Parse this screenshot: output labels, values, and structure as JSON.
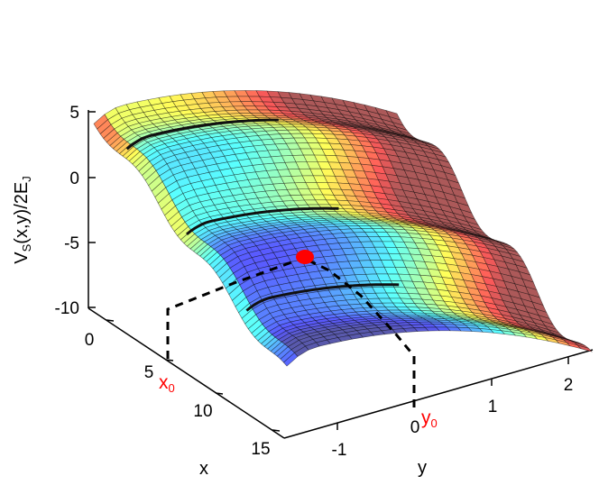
{
  "chart_data": {
    "type": "surface",
    "title": "",
    "zlabel": {
      "main": "V",
      "sub": "S",
      "mid": "(x,y)/2E",
      "sub2": "J"
    },
    "xlabel": "x",
    "ylabel": "y",
    "x_ticks": [
      "0",
      "5",
      "10",
      "15"
    ],
    "y_ticks": [
      "-1",
      "0",
      "1",
      "2"
    ],
    "z_ticks": [
      "5",
      "0",
      "-5",
      "-10"
    ],
    "xlim": [
      -1,
      16
    ],
    "ylim": [
      -1.6,
      2.5
    ],
    "zlim": [
      -10,
      5
    ],
    "colormap": "jet",
    "surface_alpha": 0.65,
    "grid": false,
    "markers": [
      {
        "name": "x0_label",
        "text": "x",
        "sub": "0",
        "color": "#ff0000"
      },
      {
        "name": "y0_label",
        "text": "y",
        "sub": "0",
        "color": "#ff0000"
      }
    ],
    "point": {
      "color": "#ff0000"
    }
  }
}
